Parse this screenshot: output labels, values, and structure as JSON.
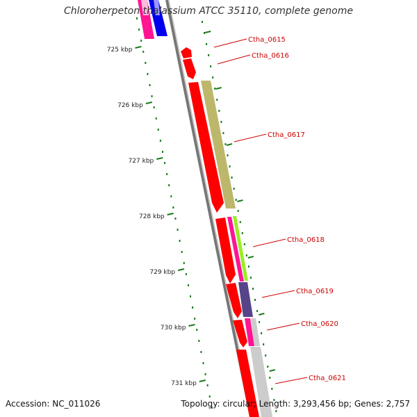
{
  "title": "Chloroherpeton thalassium ATCC 35110, complete genome",
  "footer": {
    "accession": "Accession: NC_011026",
    "summary": "Topology: circular; Length: 3,293,456 bp; Genes: 2,757"
  },
  "colors": {
    "backbone": "#777777",
    "tick": "#1a7a1a",
    "label": "#cc0000",
    "cds_red": "#ff0000",
    "magenta": "#ff1493",
    "blue": "#0000ee",
    "olive": "#bdb76b",
    "lime": "#99ee22",
    "slate": "#554488",
    "gray": "#cccccc"
  },
  "kbp_ticks": [
    {
      "value": 725,
      "label": "725 kbp"
    },
    {
      "value": 726,
      "label": "726 kbp"
    },
    {
      "value": 727,
      "label": "727 kbp"
    },
    {
      "value": 728,
      "label": "728 kbp"
    },
    {
      "value": 729,
      "label": "729 kbp"
    },
    {
      "value": 730,
      "label": "730 kbp"
    },
    {
      "value": 731,
      "label": "731 kbp"
    }
  ],
  "gene_labels": [
    {
      "name": "Ctha_0615"
    },
    {
      "name": "Ctha_0616"
    },
    {
      "name": "Ctha_0617"
    },
    {
      "name": "Ctha_0618"
    },
    {
      "name": "Ctha_0619"
    },
    {
      "name": "Ctha_0620"
    },
    {
      "name": "Ctha_0621"
    }
  ]
}
